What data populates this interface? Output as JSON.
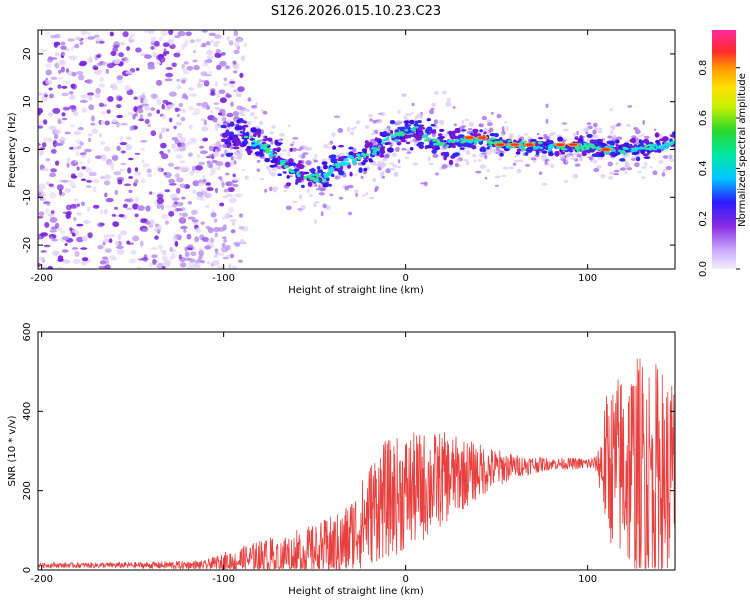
{
  "title": "S126.2026.015.10.23.C23",
  "chart_data": [
    {
      "type": "heatmap",
      "name": "spectrogram",
      "xlabel": "Height of straight line (km)",
      "ylabel": "Frequency (Hz)",
      "xlim": [
        -202,
        148
      ],
      "ylim": [
        -25,
        25
      ],
      "xticks": [
        -200,
        -100,
        0,
        100
      ],
      "yticks": [
        -20,
        -10,
        0,
        10,
        20
      ],
      "colorbar": {
        "label": "Normalized spectral amplitude",
        "range": [
          0.0,
          0.95
        ],
        "ticks": [
          0.0,
          0.2,
          0.4,
          0.6,
          0.8
        ],
        "tick_labels": [
          "0.0",
          "0.2",
          "0.4",
          "0.6",
          "0.8"
        ]
      },
      "ridge": {
        "x": [
          -100,
          -90,
          -80,
          -70,
          -60,
          -50,
          -45,
          -40,
          -30,
          -20,
          -10,
          0,
          5,
          10,
          20,
          30,
          40,
          60,
          80,
          100,
          120,
          140,
          148
        ],
        "y": [
          2,
          3,
          1,
          -2,
          -5,
          -6,
          -6,
          -4,
          -2,
          -1,
          2,
          4,
          4,
          3,
          1,
          2,
          2,
          1,
          0.5,
          0.5,
          0,
          0.5,
          2
        ]
      },
      "noise_region_x": [
        -202,
        -100
      ]
    },
    {
      "type": "line",
      "name": "snr",
      "xlabel": "Height of straight line (km)",
      "ylabel": "SNR (10 * v/v)",
      "xlim": [
        -202,
        148
      ],
      "ylim": [
        0,
        600
      ],
      "xticks": [
        -200,
        -100,
        0,
        100
      ],
      "yticks": [
        0,
        200,
        400,
        600
      ],
      "color": "#e8403e",
      "envelope": {
        "x": [
          -202,
          -150,
          -110,
          -100,
          -80,
          -50,
          -35,
          -25,
          -15,
          0,
          10,
          20,
          40,
          60,
          80,
          100,
          105,
          110,
          120,
          130,
          140,
          148
        ],
        "base": [
          12,
          12,
          12,
          20,
          30,
          45,
          60,
          110,
          170,
          195,
          210,
          230,
          250,
          262,
          268,
          268,
          268,
          265,
          260,
          250,
          240,
          230
        ],
        "noise": [
          6,
          8,
          12,
          25,
          45,
          70,
          90,
          110,
          150,
          150,
          140,
          120,
          70,
          30,
          15,
          15,
          20,
          180,
          260,
          300,
          280,
          260
        ]
      }
    }
  ]
}
